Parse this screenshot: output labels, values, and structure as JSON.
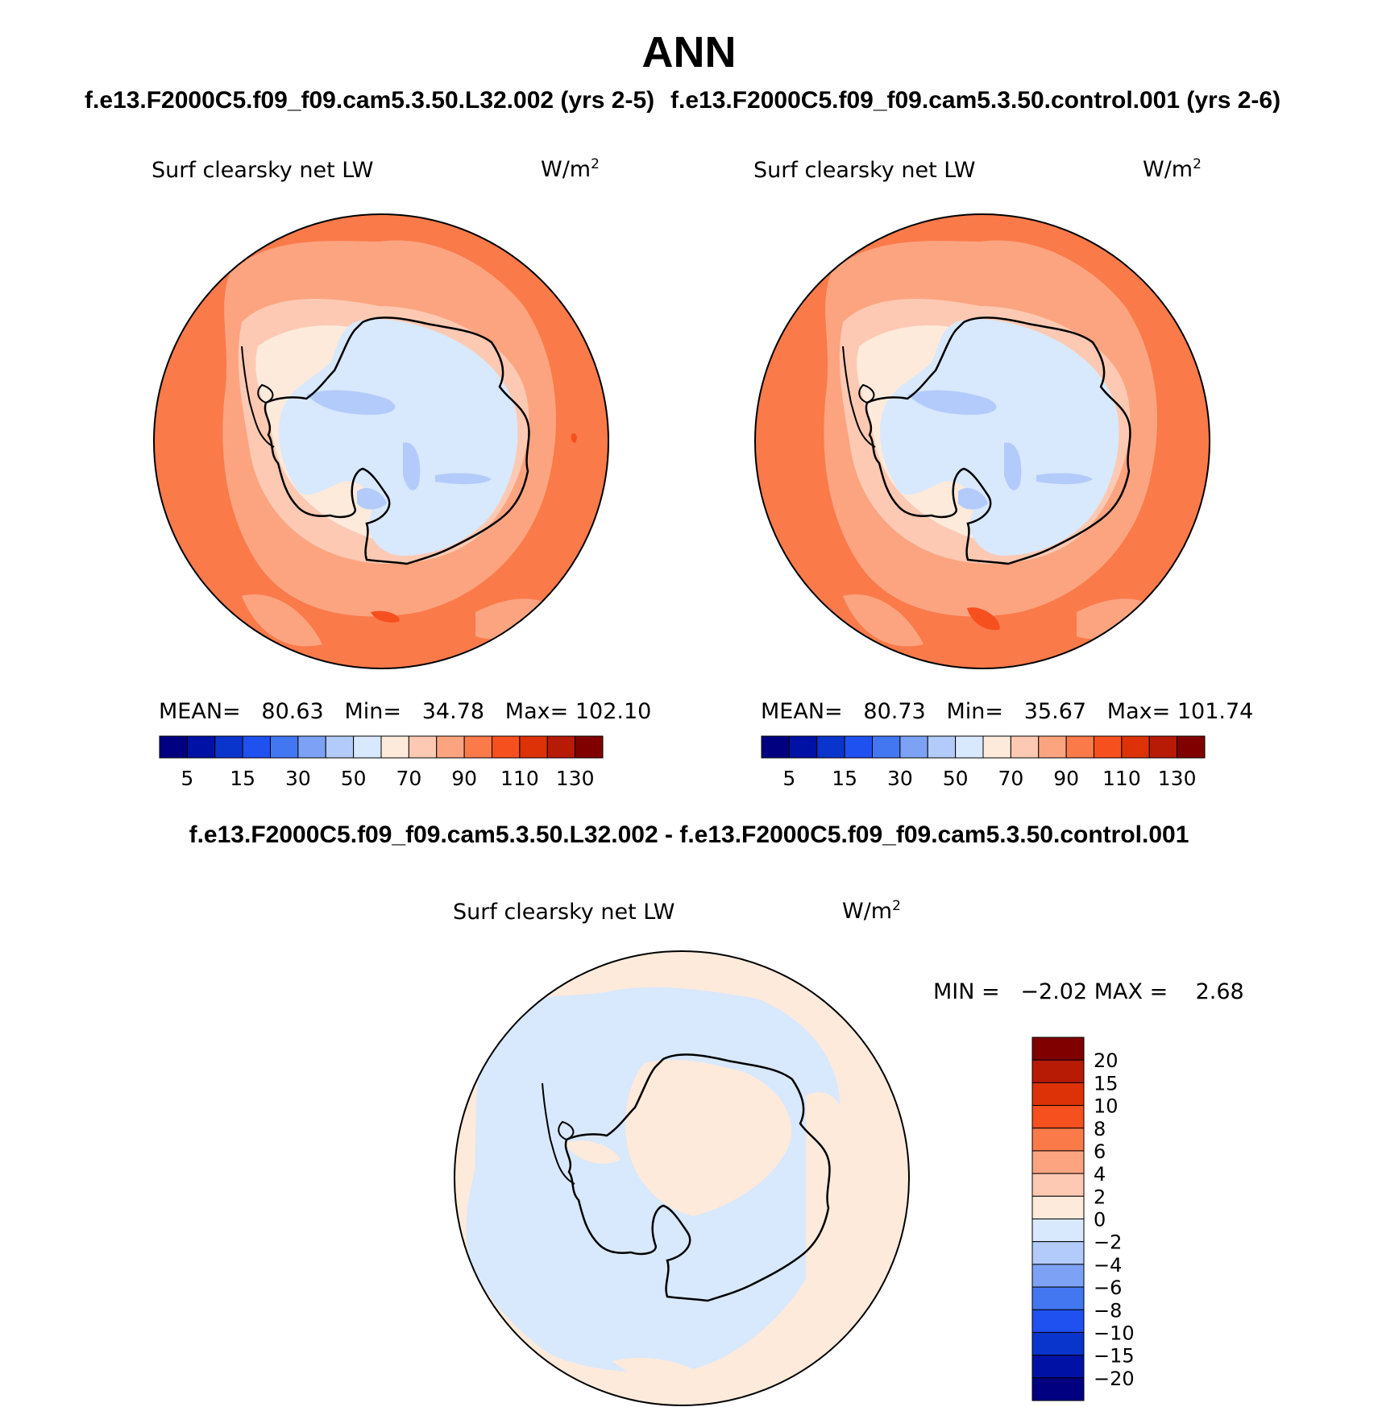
{
  "main_title": "ANN",
  "panels": [
    {
      "case_title": "f.e13.F2000C5.f09_f09.cam5.3.50.L32.002 (yrs 2-5)",
      "var_label": "Surf clearsky net LW",
      "units_base": "W/m",
      "units_exp": "2",
      "stats": {
        "mean_label": "MEAN=",
        "mean": "80.63",
        "min_label": "Min=",
        "min": "34.78",
        "max_label": "Max=",
        "max": "102.10"
      }
    },
    {
      "case_title": "f.e13.F2000C5.f09_f09.cam5.3.50.control.001 (yrs 2-6)",
      "var_label": "Surf clearsky net LW",
      "units_base": "W/m",
      "units_exp": "2",
      "stats": {
        "mean_label": "MEAN=",
        "mean": "80.73",
        "min_label": "Min=",
        "min": "35.67",
        "max_label": "Max=",
        "max": "101.74"
      }
    }
  ],
  "diff_panel": {
    "title": "f.e13.F2000C5.f09_f09.cam5.3.50.L32.002 - f.e13.F2000C5.f09_f09.cam5.3.50.control.001",
    "var_label": "Surf clearsky net LW",
    "units_base": "W/m",
    "units_exp": "2",
    "stats": {
      "min_label": "MIN =",
      "min": "−2.02",
      "max_label": "MAX =",
      "max": "2.68"
    }
  },
  "abs_colorbar": {
    "colors": [
      "#000080",
      "#0011a5",
      "#0a35cc",
      "#1f50f0",
      "#4377f2",
      "#7da2f5",
      "#b3cbfa",
      "#d8e8fd",
      "#fdeadb",
      "#fdc9b2",
      "#fca480",
      "#fa7a4a",
      "#f6501f",
      "#dd3208",
      "#b71a05",
      "#800000"
    ],
    "tick_labels": [
      "5",
      "15",
      "30",
      "50",
      "70",
      "90",
      "110",
      "130"
    ]
  },
  "diff_colorbar": {
    "colors_top_to_bottom": [
      "#800000",
      "#b71a05",
      "#dd3208",
      "#f6501f",
      "#fa7a4a",
      "#fca480",
      "#fdc9b2",
      "#fdeadb",
      "#d8e8fd",
      "#b3cbfa",
      "#7da2f5",
      "#4377f2",
      "#1f50f0",
      "#0a35cc",
      "#0011a5",
      "#000080"
    ],
    "tick_labels_top_to_bottom": [
      "20",
      "15",
      "10",
      "8",
      "6",
      "4",
      "2",
      "0",
      "−2",
      "−4",
      "−6",
      "−8",
      "−10",
      "−15",
      "−20"
    ]
  },
  "legend_colors": {
    "ocean_warm": "#fa7a4a",
    "ocean_mid": "#fca480",
    "coast": "#fdc9b2",
    "continent": "#d8e8fd",
    "continent_low": "#b3cbfa",
    "diff_pos": "#fdeadb",
    "diff_neg": "#d8e8fd"
  }
}
